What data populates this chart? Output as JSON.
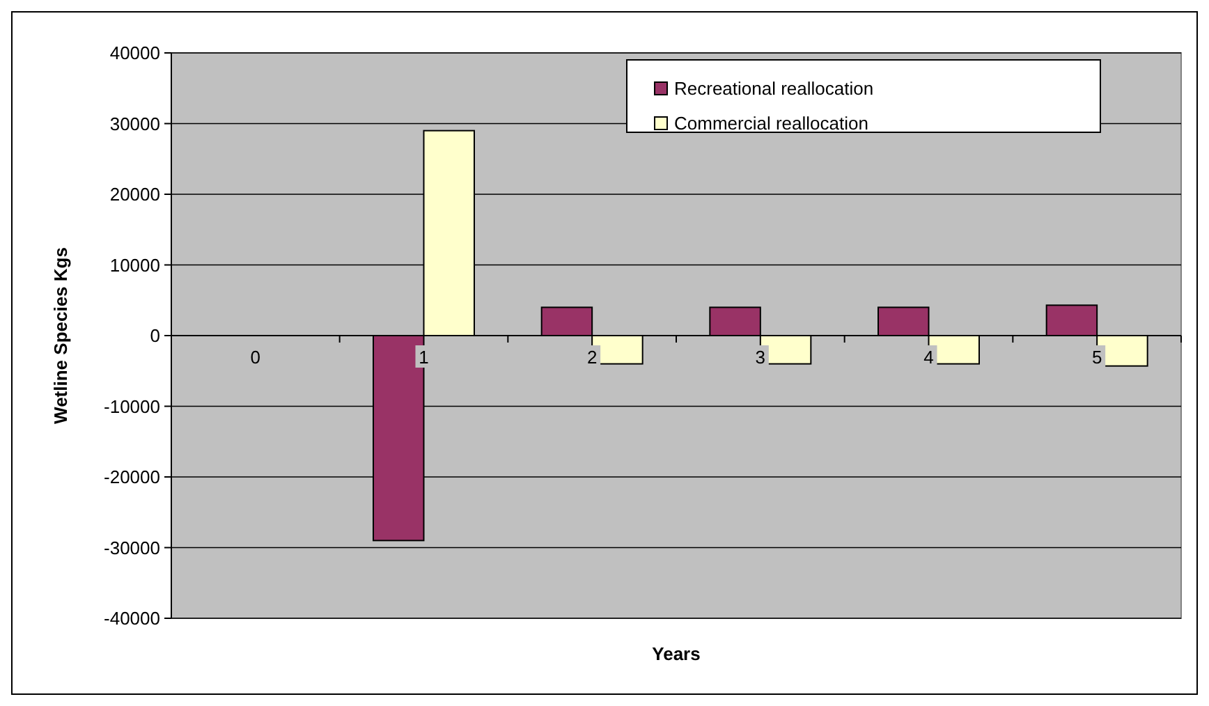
{
  "chart_data": {
    "type": "bar",
    "xlabel": "Years",
    "ylabel": "Wetline Species Kgs",
    "categories": [
      "0",
      "1",
      "2",
      "3",
      "4",
      "5"
    ],
    "series": [
      {
        "name": "Recreational reallocation",
        "color": "#993366",
        "values": [
          0,
          -29000,
          4000,
          4000,
          4000,
          4300
        ]
      },
      {
        "name": "Commercial reallocation",
        "color": "#ffffcc",
        "values": [
          0,
          29000,
          -4000,
          -4000,
          -4000,
          -4300
        ]
      }
    ],
    "ylim": [
      -40000,
      40000
    ],
    "yticks": [
      -40000,
      -30000,
      -20000,
      -10000,
      0,
      10000,
      20000,
      30000,
      40000
    ],
    "grid": "y",
    "legend": "top right"
  }
}
